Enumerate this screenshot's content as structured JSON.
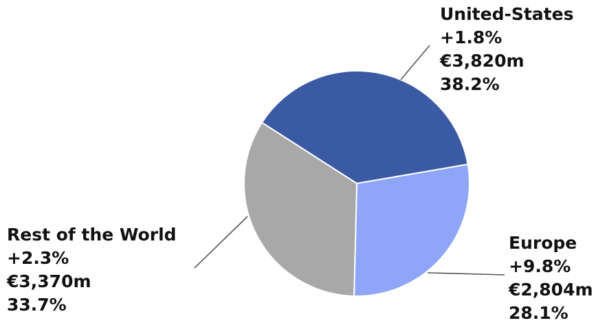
{
  "chart_data": {
    "type": "pie",
    "title": "",
    "slices": [
      {
        "name": "United-States",
        "growth": "+1.8%",
        "amount": "€3,820m",
        "share": "38.2%",
        "value": 38.2,
        "color": "#3a5aa3"
      },
      {
        "name": "Europe",
        "growth": "+9.8%",
        "amount": "€2,804m",
        "share": "28.1%",
        "value": 28.1,
        "color": "#8fa6f8"
      },
      {
        "name": "Rest of the World",
        "growth": "+2.3%",
        "amount": "€3,370m",
        "share": "33.7%",
        "value": 33.7,
        "color": "#a8a8a8"
      }
    ],
    "legend": "none"
  }
}
